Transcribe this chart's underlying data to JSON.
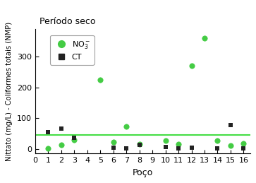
{
  "title": "Período seco",
  "xlabel": "Poço",
  "ylabel": "Nittato (mg/L) - Coliformes totais (NMP)",
  "xlim": [
    0,
    16.5
  ],
  "ylim": [
    -15,
    390
  ],
  "yticks": [
    0,
    100,
    200,
    300
  ],
  "xticks": [
    0,
    1,
    2,
    3,
    4,
    5,
    6,
    7,
    8,
    9,
    10,
    11,
    12,
    13,
    14,
    15,
    16
  ],
  "reference_line_y": 45,
  "reference_line_color": "#44dd44",
  "no3_x": [
    1,
    2,
    3,
    5,
    6,
    7,
    8,
    10,
    11,
    12,
    13,
    14,
    15,
    16
  ],
  "no3_y": [
    2,
    13,
    30,
    225,
    22,
    72,
    15,
    28,
    15,
    270,
    360,
    28,
    10,
    18
  ],
  "ct_x": [
    1,
    2,
    3,
    6,
    7,
    8,
    10,
    11,
    12,
    14,
    15,
    16
  ],
  "ct_y": [
    55,
    65,
    35,
    3,
    2,
    12,
    7,
    2,
    5,
    2,
    78,
    2
  ],
  "no3_color": "#44cc44",
  "ct_color": "#222222",
  "no3_marker": "o",
  "ct_marker": "s",
  "no3_label": "NO$_3^-$",
  "ct_label": "CT",
  "background_color": "#ffffff"
}
